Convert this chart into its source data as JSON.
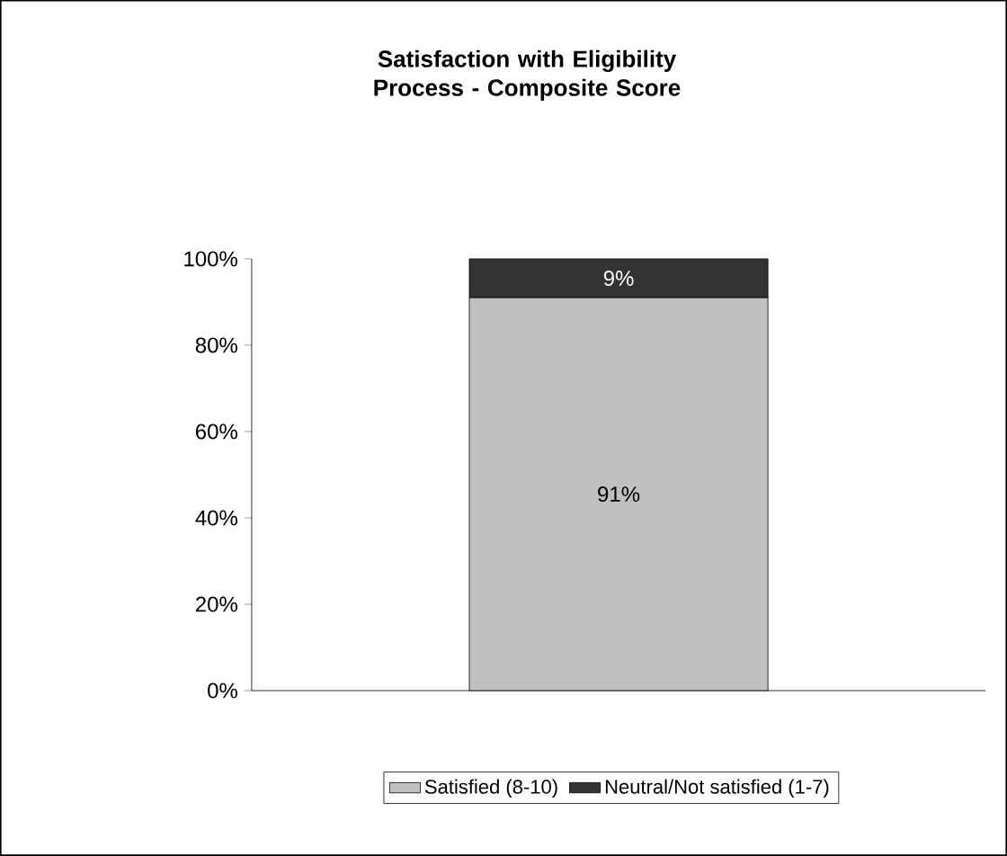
{
  "chart_data": {
    "type": "bar",
    "title": "Satisfaction with Eligibility Process - Composite Score",
    "categories": [
      null
    ],
    "stacked": true,
    "series": [
      {
        "name": "Satisfied (8-10)",
        "color": "#c0c0c0",
        "values": [
          91
        ],
        "value_labels": [
          "91%"
        ]
      },
      {
        "name": "Neutral/Not satisfied (1-7)",
        "color": "#333333",
        "values": [
          9
        ],
        "value_labels": [
          "9%"
        ]
      }
    ],
    "ylim": [
      0,
      100
    ],
    "yticks": [
      {
        "value": 0,
        "label": "0%"
      },
      {
        "value": 20,
        "label": "20%"
      },
      {
        "value": 40,
        "label": "40%"
      },
      {
        "value": 60,
        "label": "60%"
      },
      {
        "value": 80,
        "label": "80%"
      },
      {
        "value": 100,
        "label": "100%"
      }
    ],
    "legend": "bottom",
    "grid": false
  }
}
